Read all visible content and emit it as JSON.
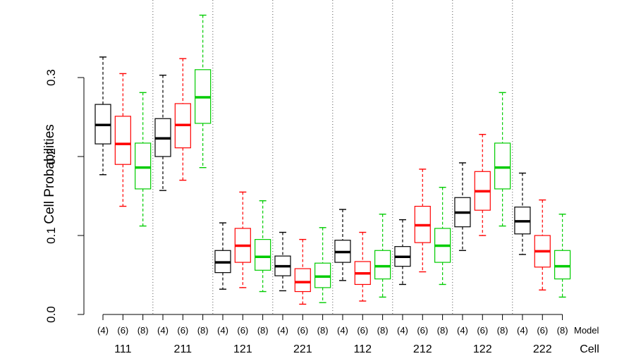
{
  "chart_data": {
    "type": "box",
    "ylabel": "Cell Probabilities",
    "ylim": [
      0,
      0.4
    ],
    "y_ticks": [
      "0.0",
      "0.1",
      "0.2",
      "0.3"
    ],
    "y_tick_values": [
      0,
      0.1,
      0.2,
      0.3
    ],
    "grid": false,
    "group_separators": true,
    "model_row_label": "Model",
    "cell_row_label": "Cell",
    "model_labels": [
      "(4)",
      "(6)",
      "(8)"
    ],
    "series_colors": [
      "#000000",
      "#ff0000",
      "#00cc00"
    ],
    "cells": [
      {
        "cell": "111",
        "boxes": [
          {
            "model": "(4)",
            "whisker_low": 0.177,
            "q1": 0.216,
            "median": 0.24,
            "q3": 0.266,
            "whisker_high": 0.326
          },
          {
            "model": "(6)",
            "whisker_low": 0.137,
            "q1": 0.19,
            "median": 0.216,
            "q3": 0.251,
            "whisker_high": 0.305
          },
          {
            "model": "(8)",
            "whisker_low": 0.112,
            "q1": 0.159,
            "median": 0.186,
            "q3": 0.217,
            "whisker_high": 0.281
          }
        ]
      },
      {
        "cell": "211",
        "boxes": [
          {
            "model": "(4)",
            "whisker_low": 0.157,
            "q1": 0.2,
            "median": 0.223,
            "q3": 0.248,
            "whisker_high": 0.303
          },
          {
            "model": "(6)",
            "whisker_low": 0.17,
            "q1": 0.211,
            "median": 0.24,
            "q3": 0.267,
            "whisker_high": 0.324
          },
          {
            "model": "(8)",
            "whisker_low": 0.186,
            "q1": 0.242,
            "median": 0.275,
            "q3": 0.31,
            "whisker_high": 0.379
          }
        ]
      },
      {
        "cell": "121",
        "boxes": [
          {
            "model": "(4)",
            "whisker_low": 0.032,
            "q1": 0.053,
            "median": 0.066,
            "q3": 0.081,
            "whisker_high": 0.116
          },
          {
            "model": "(6)",
            "whisker_low": 0.034,
            "q1": 0.066,
            "median": 0.087,
            "q3": 0.109,
            "whisker_high": 0.155
          },
          {
            "model": "(8)",
            "whisker_low": 0.029,
            "q1": 0.056,
            "median": 0.073,
            "q3": 0.095,
            "whisker_high": 0.144
          }
        ]
      },
      {
        "cell": "221",
        "boxes": [
          {
            "model": "(4)",
            "whisker_low": 0.03,
            "q1": 0.049,
            "median": 0.061,
            "q3": 0.074,
            "whisker_high": 0.104
          },
          {
            "model": "(6)",
            "whisker_low": 0.013,
            "q1": 0.029,
            "median": 0.041,
            "q3": 0.058,
            "whisker_high": 0.095
          },
          {
            "model": "(8)",
            "whisker_low": 0.015,
            "q1": 0.034,
            "median": 0.048,
            "q3": 0.065,
            "whisker_high": 0.11
          }
        ]
      },
      {
        "cell": "112",
        "boxes": [
          {
            "model": "(4)",
            "whisker_low": 0.043,
            "q1": 0.066,
            "median": 0.079,
            "q3": 0.094,
            "whisker_high": 0.133
          },
          {
            "model": "(6)",
            "whisker_low": 0.017,
            "q1": 0.038,
            "median": 0.052,
            "q3": 0.067,
            "whisker_high": 0.104
          },
          {
            "model": "(8)",
            "whisker_low": 0.022,
            "q1": 0.045,
            "median": 0.061,
            "q3": 0.081,
            "whisker_high": 0.127
          }
        ]
      },
      {
        "cell": "212",
        "boxes": [
          {
            "model": "(4)",
            "whisker_low": 0.038,
            "q1": 0.061,
            "median": 0.073,
            "q3": 0.086,
            "whisker_high": 0.12
          },
          {
            "model": "(6)",
            "whisker_low": 0.054,
            "q1": 0.091,
            "median": 0.113,
            "q3": 0.137,
            "whisker_high": 0.184
          },
          {
            "model": "(8)",
            "whisker_low": 0.038,
            "q1": 0.066,
            "median": 0.087,
            "q3": 0.109,
            "whisker_high": 0.161
          }
        ]
      },
      {
        "cell": "122",
        "boxes": [
          {
            "model": "(4)",
            "whisker_low": 0.081,
            "q1": 0.111,
            "median": 0.129,
            "q3": 0.148,
            "whisker_high": 0.192
          },
          {
            "model": "(6)",
            "whisker_low": 0.1,
            "q1": 0.132,
            "median": 0.156,
            "q3": 0.181,
            "whisker_high": 0.228
          },
          {
            "model": "(8)",
            "whisker_low": 0.112,
            "q1": 0.159,
            "median": 0.186,
            "q3": 0.217,
            "whisker_high": 0.281
          }
        ]
      },
      {
        "cell": "222",
        "boxes": [
          {
            "model": "(4)",
            "whisker_low": 0.076,
            "q1": 0.102,
            "median": 0.118,
            "q3": 0.136,
            "whisker_high": 0.179
          },
          {
            "model": "(6)",
            "whisker_low": 0.031,
            "q1": 0.06,
            "median": 0.08,
            "q3": 0.1,
            "whisker_high": 0.145
          },
          {
            "model": "(8)",
            "whisker_low": 0.022,
            "q1": 0.045,
            "median": 0.061,
            "q3": 0.081,
            "whisker_high": 0.127
          }
        ]
      }
    ]
  }
}
